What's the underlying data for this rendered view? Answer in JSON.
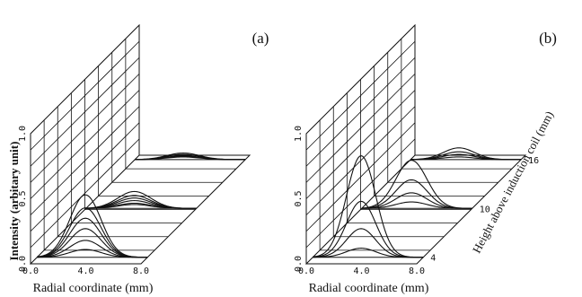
{
  "chart_data": [
    {
      "panel_label": "(a)",
      "type": "line",
      "subtype": "3d-waterfall",
      "ylabel": "Intensity (arbitary unit)",
      "xlabel": "Radial coordinate (mm)",
      "x_ticks": [
        "0.0",
        "4.0",
        "8.0"
      ],
      "y_ticks": [
        "0.0",
        "0.5",
        "1.0"
      ],
      "xlim": [
        0,
        8
      ],
      "ylim": [
        0,
        1
      ],
      "grid": true,
      "profiles": [
        {
          "height": 4,
          "peak_x": 3.5,
          "width": 1.6,
          "peaks": [
            0.48,
            0.38,
            0.3,
            0.22,
            0.13,
            0.06
          ]
        },
        {
          "height": 10,
          "peak_x": 3.5,
          "width": 1.7,
          "peaks": [
            0.13,
            0.1,
            0.08,
            0.06,
            0.04,
            0.03
          ]
        },
        {
          "height": 16,
          "peak_x": 3.5,
          "width": 1.7,
          "peaks": [
            0.05,
            0.04,
            0.03,
            0.025,
            0.02
          ]
        }
      ]
    },
    {
      "panel_label": "(b)",
      "type": "line",
      "subtype": "3d-waterfall",
      "xlabel": "Radial coordinate (mm)",
      "zlabel": "Height above induction coil (mm)",
      "x_ticks": [
        "0.0",
        "4.0",
        "8.0"
      ],
      "y_ticks": [
        "0.0",
        "0.5",
        "1.0"
      ],
      "z_ticks": [
        "4",
        "10",
        "16"
      ],
      "xlim": [
        0,
        8
      ],
      "ylim": [
        0,
        1
      ],
      "grid": true,
      "profiles": [
        {
          "height": 4,
          "peak_x": 3.5,
          "width": 1.5,
          "peaks": [
            0.78,
            0.43,
            0.22,
            0.07
          ]
        },
        {
          "height": 10,
          "peak_x": 3.6,
          "width": 1.6,
          "peaks": [
            0.37,
            0.22,
            0.12,
            0.05
          ]
        },
        {
          "height": 16,
          "peak_x": 3.5,
          "width": 1.6,
          "peaks": [
            0.09,
            0.06,
            0.04,
            0.02
          ]
        }
      ]
    }
  ]
}
